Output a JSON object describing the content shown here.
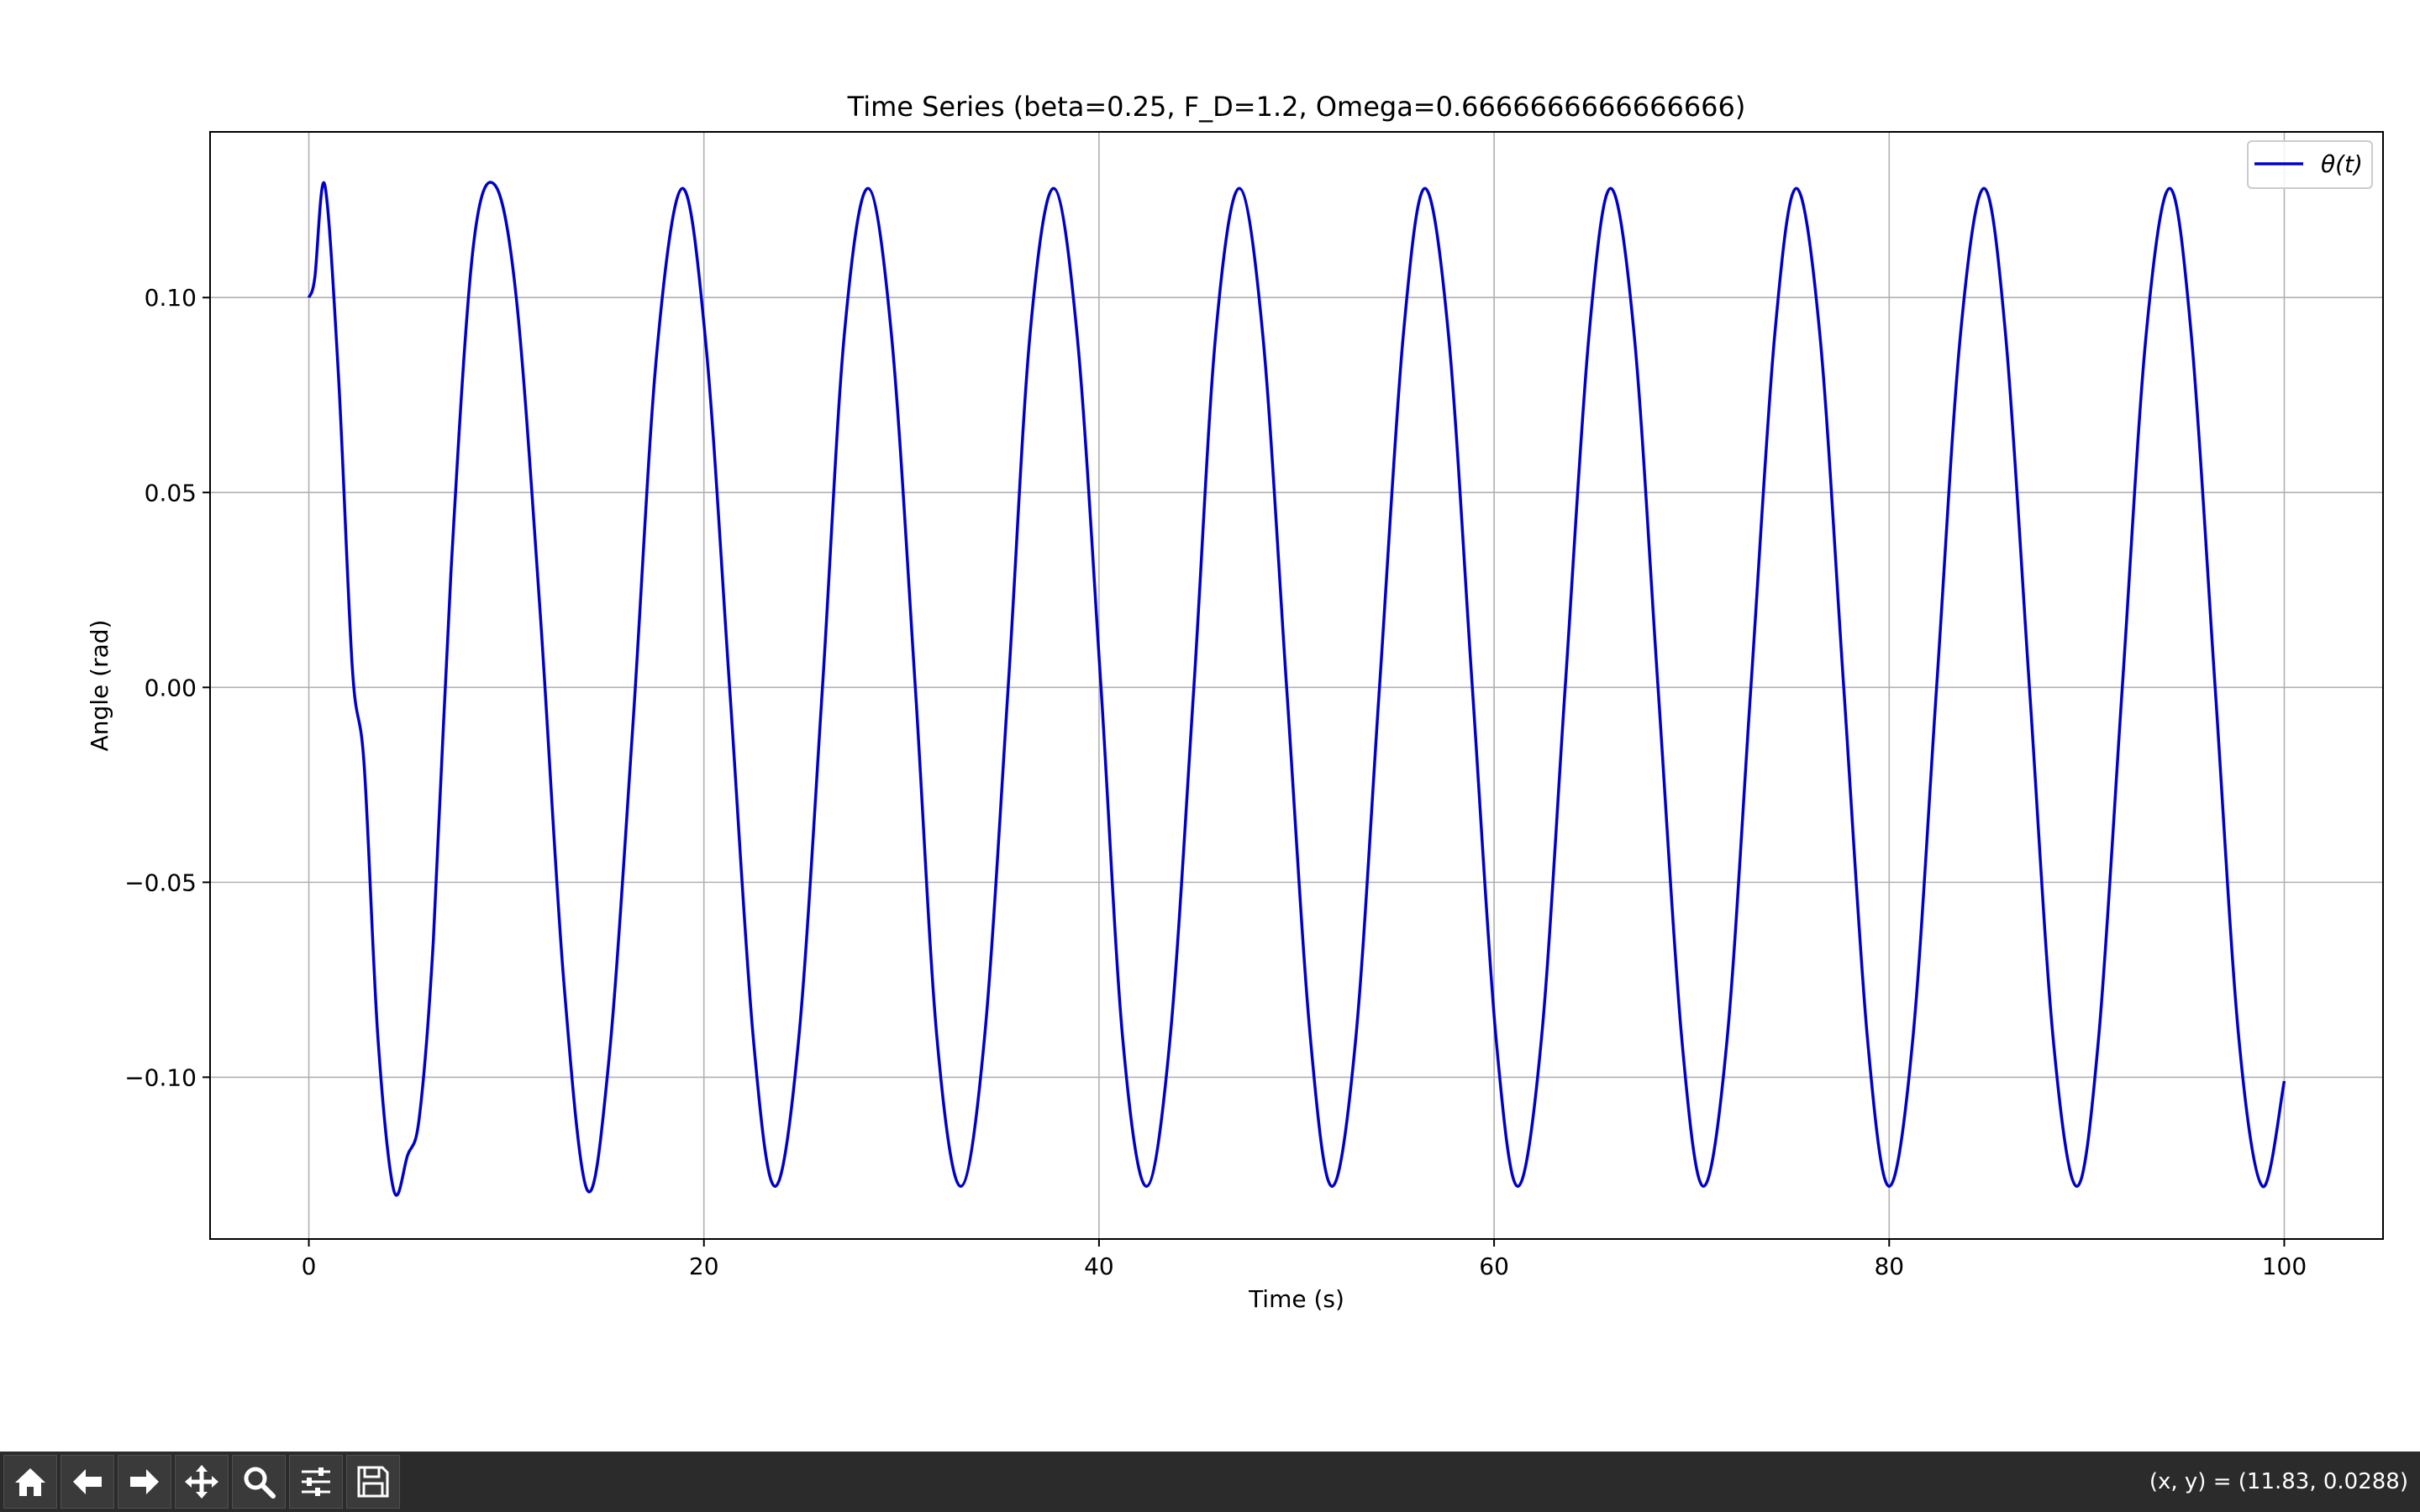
{
  "chart_data": {
    "type": "line",
    "title": "Time Series (beta=0.25, F_D=1.2, Omega=0.6666666666666666)",
    "xlabel": "Time (s)",
    "ylabel": "Angle (rad)",
    "xlim": [
      -5,
      105
    ],
    "ylim": [
      -0.1415,
      0.1425
    ],
    "xticks": [
      0,
      20,
      40,
      60,
      80,
      100
    ],
    "xtick_labels": [
      "0",
      "20",
      "40",
      "60",
      "80",
      "100"
    ],
    "yticks": [
      -0.1,
      -0.05,
      0.0,
      0.05,
      0.1
    ],
    "ytick_labels": [
      "−0.10",
      "−0.05",
      "0.00",
      "0.05",
      "0.10"
    ],
    "grid": true,
    "legend_position": "top-right",
    "series": [
      {
        "name": "θ(t)",
        "color": "#0000cc",
        "x": [
          0,
          0.3,
          0.8,
          1.5,
          2.2,
          2.8,
          3.5,
          4.3,
          5.0,
          5.6,
          6.3,
          7.2,
          8.3,
          9.4,
          10.5,
          11.7,
          12.9,
          14.1,
          15.2,
          16.4,
          17.6,
          18.9,
          20.1,
          21.3,
          22.5,
          23.6,
          24.8,
          26.0,
          27.1,
          28.3,
          29.5,
          30.7,
          31.8,
          33.0,
          34.2,
          35.4,
          36.5,
          37.7,
          38.9,
          40.1,
          41.2,
          42.4,
          43.6,
          44.8,
          45.9,
          47.1,
          48.3,
          49.5,
          50.7,
          51.8,
          53.0,
          54.2,
          55.4,
          56.5,
          57.7,
          58.9,
          60.1,
          61.2,
          62.4,
          63.6,
          64.8,
          65.9,
          67.1,
          68.3,
          69.5,
          70.6,
          71.8,
          73.0,
          74.2,
          75.3,
          76.5,
          77.7,
          78.9,
          80.0,
          81.2,
          82.4,
          83.6,
          84.8,
          85.9,
          87.1,
          88.3,
          89.5,
          90.6,
          91.8,
          93.0,
          94.2,
          95.3,
          96.5,
          97.7,
          98.9,
          100.0
        ],
        "y": [
          0.1,
          0.105,
          0.129,
          0.08,
          0.005,
          -0.02,
          -0.09,
          -0.129,
          -0.12,
          -0.11,
          -0.065,
          0.03,
          0.112,
          0.129,
          0.1,
          0.02,
          -0.075,
          -0.129,
          -0.095,
          -0.01,
          0.085,
          0.128,
          0.088,
          0.0,
          -0.09,
          -0.128,
          -0.09,
          0.0,
          0.09,
          0.128,
          0.09,
          0.0,
          -0.09,
          -0.128,
          -0.09,
          0.0,
          0.09,
          0.128,
          0.09,
          0.0,
          -0.09,
          -0.128,
          -0.09,
          0.0,
          0.09,
          0.128,
          0.09,
          0.0,
          -0.09,
          -0.128,
          -0.09,
          0.0,
          0.09,
          0.128,
          0.09,
          0.0,
          -0.09,
          -0.128,
          -0.09,
          0.0,
          0.09,
          0.128,
          0.09,
          0.0,
          -0.09,
          -0.128,
          -0.09,
          0.0,
          0.09,
          0.128,
          0.09,
          0.0,
          -0.09,
          -0.128,
          -0.09,
          0.0,
          0.09,
          0.128,
          0.09,
          0.0,
          -0.09,
          -0.128,
          -0.09,
          0.0,
          0.09,
          0.128,
          0.09,
          0.0,
          -0.09,
          -0.128,
          -0.101
        ]
      }
    ]
  },
  "toolbar": {
    "buttons": [
      {
        "name": "home-button",
        "icon": "home-icon"
      },
      {
        "name": "back-button",
        "icon": "arrow-left-icon"
      },
      {
        "name": "forward-button",
        "icon": "arrow-right-icon"
      },
      {
        "name": "pan-button",
        "icon": "move-icon"
      },
      {
        "name": "zoom-button",
        "icon": "zoom-icon"
      },
      {
        "name": "configure-subplots-button",
        "icon": "sliders-icon"
      },
      {
        "name": "save-button",
        "icon": "save-icon"
      }
    ],
    "coords_readout": "(x, y) = (11.83, 0.0288)"
  }
}
